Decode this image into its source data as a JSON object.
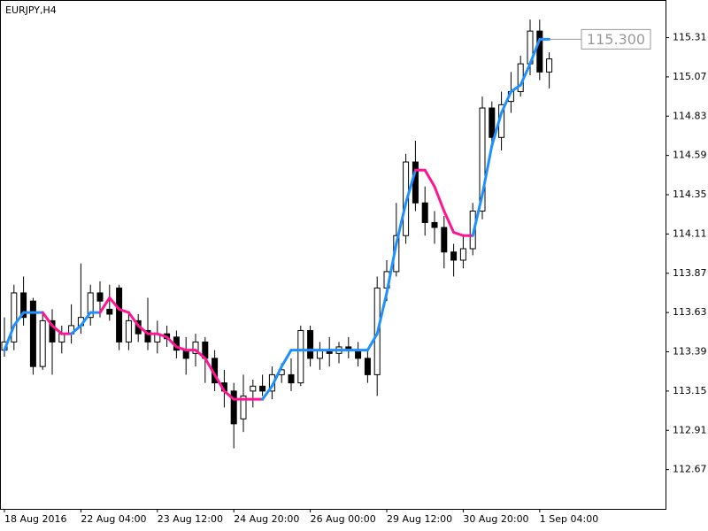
{
  "chart_data": {
    "type": "candlestick",
    "title": "EURJPY,H4",
    "categories": [
      "18 Aug 2016",
      null,
      null,
      null,
      null,
      null,
      null,
      null,
      "22 Aug 04:00",
      null,
      null,
      null,
      null,
      null,
      null,
      null,
      "23 Aug 12:00",
      null,
      null,
      null,
      null,
      null,
      null,
      null,
      "24 Aug 20:00",
      null,
      null,
      null,
      null,
      null,
      null,
      null,
      "26 Aug 00:00",
      null,
      null,
      null,
      null,
      null,
      null,
      null,
      "29 Aug 12:00",
      null,
      null,
      null,
      null,
      null,
      null,
      null,
      "30 Aug 20:00",
      null,
      null,
      null,
      null,
      null,
      null,
      null,
      "1 Sep 04:00",
      null
    ],
    "open": [
      113.4,
      113.45,
      113.75,
      113.7,
      113.3,
      113.58,
      113.45,
      113.5,
      113.55,
      113.6,
      113.75,
      113.65,
      113.78,
      113.45,
      113.58,
      113.52,
      113.45,
      113.5,
      113.48,
      113.4,
      113.38,
      113.45,
      113.35,
      113.2,
      113.15,
      112.98,
      113.15,
      113.18,
      113.15,
      113.25,
      113.25,
      113.2,
      113.52,
      113.35,
      113.4,
      113.38,
      113.42,
      113.4,
      113.35,
      113.25,
      113.78,
      113.88,
      114.1,
      114.55,
      114.3,
      114.18,
      114.15,
      114.0,
      113.95,
      114.02,
      114.25,
      114.88,
      114.7,
      114.92,
      114.98,
      115.15,
      115.35,
      115.1
    ],
    "high": [
      113.6,
      113.8,
      113.85,
      113.72,
      113.62,
      113.65,
      113.55,
      113.68,
      113.93,
      113.8,
      113.82,
      113.8,
      113.8,
      113.62,
      113.62,
      113.72,
      113.58,
      113.55,
      113.52,
      113.48,
      113.5,
      113.48,
      113.4,
      113.28,
      113.2,
      113.25,
      113.22,
      113.25,
      113.3,
      113.32,
      113.35,
      113.55,
      113.55,
      113.45,
      113.48,
      113.45,
      113.48,
      113.45,
      113.4,
      113.85,
      113.95,
      114.3,
      114.6,
      114.68,
      114.4,
      114.25,
      114.22,
      114.05,
      114.1,
      114.3,
      114.95,
      114.92,
      114.98,
      115.1,
      115.2,
      115.42,
      115.42,
      115.22
    ],
    "low": [
      113.36,
      113.4,
      113.55,
      113.25,
      113.28,
      113.25,
      113.38,
      113.44,
      113.5,
      113.55,
      113.6,
      113.58,
      113.4,
      113.4,
      113.45,
      113.4,
      113.38,
      113.42,
      113.35,
      113.25,
      113.3,
      113.2,
      113.15,
      113.05,
      112.8,
      112.9,
      113.05,
      113.12,
      113.1,
      113.2,
      113.15,
      113.18,
      113.3,
      113.28,
      113.3,
      113.32,
      113.35,
      113.3,
      113.2,
      113.12,
      113.7,
      113.85,
      114.05,
      114.25,
      114.1,
      114.05,
      113.9,
      113.85,
      113.9,
      113.98,
      114.2,
      114.65,
      114.62,
      114.85,
      114.95,
      115.08,
      115.05,
      115.0
    ],
    "close": [
      113.45,
      113.75,
      113.6,
      113.3,
      113.58,
      113.45,
      113.5,
      113.55,
      113.6,
      113.75,
      113.7,
      113.62,
      113.45,
      113.58,
      113.5,
      113.45,
      113.5,
      113.47,
      113.4,
      113.35,
      113.45,
      113.35,
      113.2,
      113.15,
      112.95,
      113.12,
      113.18,
      113.15,
      113.25,
      113.28,
      113.2,
      113.52,
      113.35,
      113.4,
      113.38,
      113.42,
      113.4,
      113.35,
      113.25,
      113.78,
      113.88,
      114.1,
      114.55,
      114.3,
      114.18,
      114.15,
      114.0,
      113.95,
      114.02,
      114.25,
      114.88,
      114.7,
      114.9,
      114.98,
      115.15,
      115.35,
      115.1,
      115.18
    ],
    "indicator": {
      "values": [
        113.4,
        113.55,
        113.63,
        113.63,
        113.63,
        113.55,
        113.5,
        113.5,
        113.55,
        113.63,
        113.63,
        113.72,
        113.65,
        113.63,
        113.55,
        113.5,
        113.5,
        113.48,
        113.42,
        113.4,
        113.4,
        113.35,
        113.25,
        113.15,
        113.1,
        113.1,
        113.1,
        113.1,
        113.18,
        113.3,
        113.4,
        113.4,
        113.4,
        113.4,
        113.4,
        113.4,
        113.4,
        113.4,
        113.4,
        113.5,
        113.75,
        114.05,
        114.3,
        114.5,
        114.5,
        114.4,
        114.25,
        114.12,
        114.1,
        114.1,
        114.35,
        114.65,
        114.85,
        114.98,
        115.02,
        115.15,
        115.3,
        115.3
      ],
      "colors": [
        "#1e90ff",
        "#1e90ff",
        "#1e90ff",
        "#1e90ff",
        "#1e90ff",
        "#ff1493",
        "#ff1493",
        "#ff1493",
        "#1e90ff",
        "#1e90ff",
        "#1e90ff",
        "#ff1493",
        "#ff1493",
        "#ff1493",
        "#ff1493",
        "#ff1493",
        "#ff1493",
        "#ff1493",
        "#ff1493",
        "#ff1493",
        "#ff1493",
        "#ff1493",
        "#ff1493",
        "#ff1493",
        "#ff1493",
        "#ff1493",
        "#ff1493",
        "#ff1493",
        "#1e90ff",
        "#1e90ff",
        "#1e90ff",
        "#1e90ff",
        "#1e90ff",
        "#1e90ff",
        "#1e90ff",
        "#1e90ff",
        "#1e90ff",
        "#1e90ff",
        "#1e90ff",
        "#1e90ff",
        "#1e90ff",
        "#1e90ff",
        "#1e90ff",
        "#1e90ff",
        "#ff1493",
        "#ff1493",
        "#ff1493",
        "#ff1493",
        "#ff1493",
        "#ff1493",
        "#1e90ff",
        "#1e90ff",
        "#1e90ff",
        "#1e90ff",
        "#1e90ff",
        "#1e90ff",
        "#1e90ff",
        "#1e90ff"
      ]
    },
    "current_price": {
      "value": 115.3,
      "label": "115.300"
    },
    "ylim": [
      112.43,
      115.54
    ],
    "yticks": [
      112.67,
      112.91,
      113.15,
      113.39,
      113.63,
      113.87,
      114.11,
      114.35,
      114.59,
      114.83,
      115.07,
      115.31
    ]
  }
}
